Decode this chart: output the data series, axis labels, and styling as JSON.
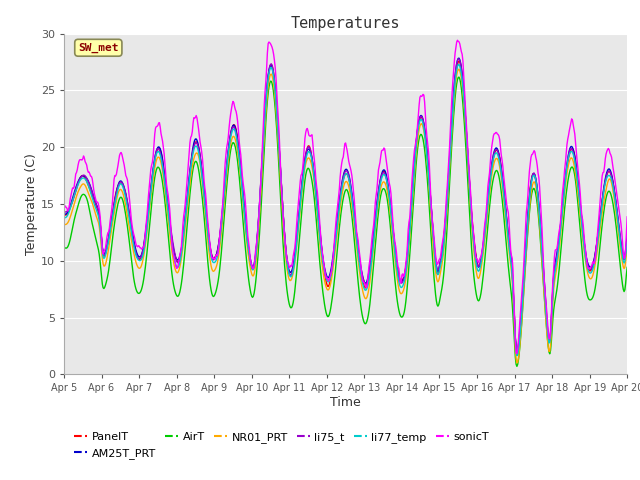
{
  "title": "Temperatures",
  "xlabel": "Time",
  "ylabel": "Temperature (C)",
  "ylim": [
    0,
    30
  ],
  "fig_bg_color": "#ffffff",
  "plot_bg_color": "#e8e8e8",
  "annotation_text": "SW_met",
  "annotation_color": "#8B0000",
  "annotation_bg": "#ffffaa",
  "series_colors": {
    "PanelT": "#ff0000",
    "AM25T_PRT": "#0000cc",
    "AirT": "#00cc00",
    "NR01_PRT": "#ffaa00",
    "li75_t": "#9900cc",
    "li77_temp": "#00cccc",
    "sonicT": "#ff00ff"
  },
  "x_tick_labels": [
    "Apr 5",
    "Apr 6",
    "Apr 7",
    "Apr 8",
    "Apr 9",
    "Apr 10",
    "Apr 11",
    "Apr 12",
    "Apr 13",
    "Apr 14",
    "Apr 15",
    "Apr 16",
    "Apr 17",
    "Apr 18",
    "Apr 19",
    "Apr 20"
  ],
  "x_tick_positions": [
    0,
    48,
    96,
    144,
    192,
    240,
    288,
    336,
    384,
    432,
    480,
    528,
    576,
    624,
    672,
    720
  ],
  "yticks": [
    0,
    5,
    10,
    15,
    20,
    25,
    30
  ],
  "grid_color": "#ffffff",
  "linewidth": 1.0
}
